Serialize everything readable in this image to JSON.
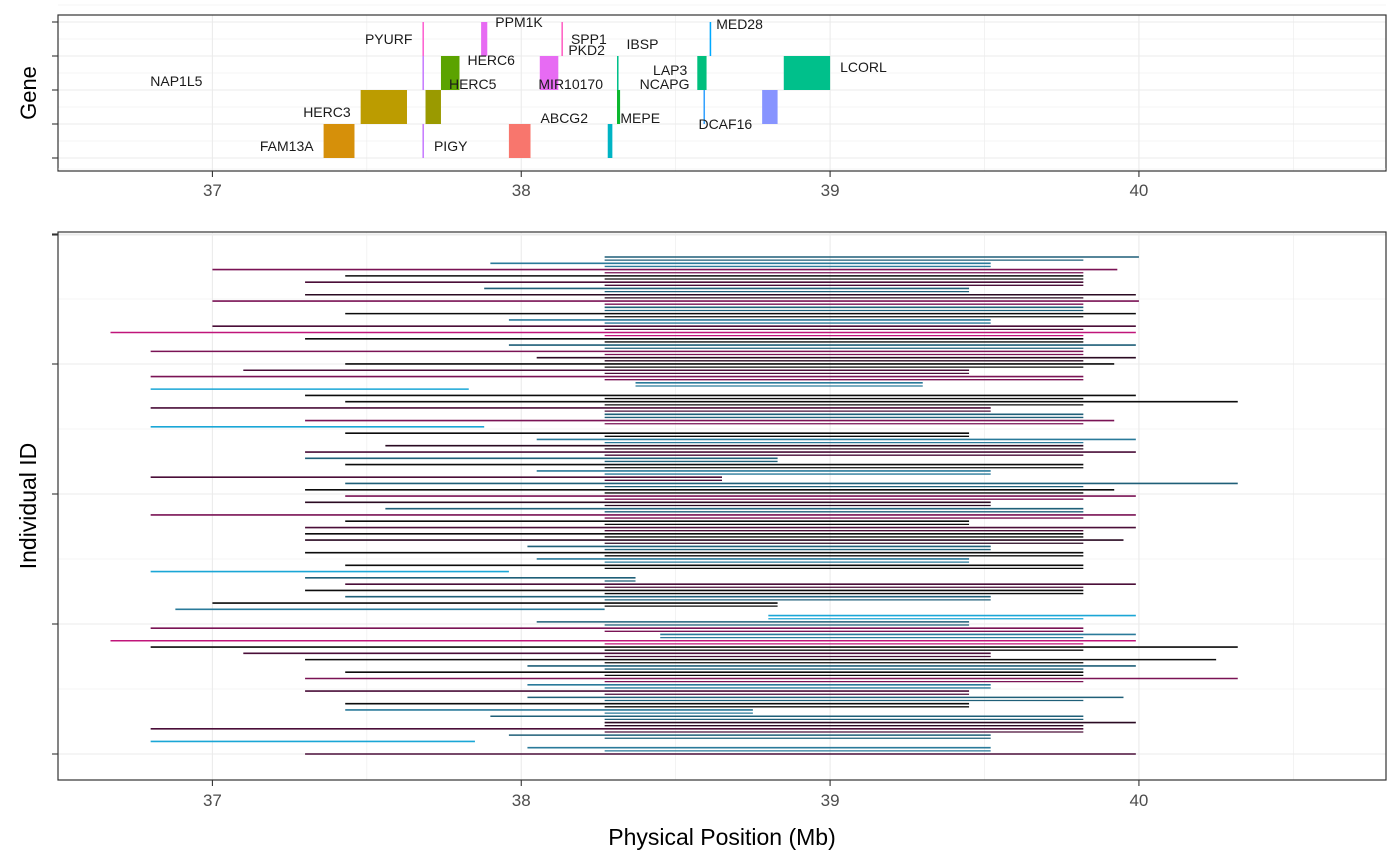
{
  "chart_data": [
    {
      "type": "gene-track",
      "ylabel": "Gene",
      "xlim": [
        36.5,
        40.8
      ],
      "x_ticks": [
        "37",
        "38",
        "39",
        "40"
      ],
      "y_tick_count": 4,
      "grid": true,
      "genes": [
        {
          "name": "FAM13A",
          "start": 37.36,
          "end": 37.46,
          "row": 0,
          "color": "#d6900a"
        },
        {
          "name": "PIGY",
          "start": 37.68,
          "end": 37.685,
          "row": 0,
          "color": "#c77cff"
        },
        {
          "name": "ABCG2",
          "start": 37.96,
          "end": 38.03,
          "row": 0,
          "color": "#f8766d"
        },
        {
          "name": "MEPE",
          "start": 38.28,
          "end": 38.295,
          "row": 0,
          "color": "#00b4c4"
        },
        {
          "name": "DCAF16",
          "start": 38.78,
          "end": 38.83,
          "row": 1,
          "color": "#8794ff"
        },
        {
          "name": "HERC3",
          "start": 37.48,
          "end": 37.63,
          "row": 1,
          "color": "#bc9c00"
        },
        {
          "name": "HERC5",
          "start": 37.69,
          "end": 37.74,
          "row": 1,
          "color": "#9a9a00"
        },
        {
          "name": "MIR10170",
          "start": 38.31,
          "end": 38.32,
          "row": 1,
          "color": "#0cb72e"
        },
        {
          "name": "NCAPG",
          "start": 38.59,
          "end": 38.595,
          "row": 1,
          "color": "#35a2ff"
        },
        {
          "name": "NAP1L5",
          "start": 37.68,
          "end": 37.685,
          "row": 2,
          "color": "#c77cff"
        },
        {
          "name": "HERC6",
          "start": 37.74,
          "end": 37.8,
          "row": 2,
          "color": "#5ba300"
        },
        {
          "name": "PKD2",
          "start": 38.06,
          "end": 38.12,
          "row": 2,
          "color": "#e76bf3"
        },
        {
          "name": "IBSP",
          "start": 38.31,
          "end": 38.315,
          "row": 2,
          "color": "#00c08b"
        },
        {
          "name": "LAP3",
          "start": 38.57,
          "end": 38.6,
          "row": 2,
          "color": "#00bf7d"
        },
        {
          "name": "LCORL",
          "start": 38.85,
          "end": 39.0,
          "row": 2,
          "color": "#00c08b"
        },
        {
          "name": "PYURF",
          "start": 37.68,
          "end": 37.685,
          "row": 3,
          "color": "#fd61d1"
        },
        {
          "name": "PPM1K",
          "start": 37.87,
          "end": 37.89,
          "row": 3,
          "color": "#e76bf3"
        },
        {
          "name": "SPP1",
          "start": 38.13,
          "end": 38.135,
          "row": 3,
          "color": "#ff61c3"
        },
        {
          "name": "MED28",
          "start": 38.61,
          "end": 38.615,
          "row": 3,
          "color": "#00a9ff"
        }
      ]
    },
    {
      "type": "interval",
      "xlabel": "Physical Position (Mb)",
      "ylabel": "Individual ID",
      "xlim": [
        36.5,
        40.8
      ],
      "x_ticks": [
        "37",
        "38",
        "39",
        "40"
      ],
      "y_tick_count": 5,
      "grid": true,
      "intervals": [
        {
          "start": 38.27,
          "end": 40.0,
          "color": "#1f5f78"
        },
        {
          "start": 37.9,
          "end": 39.52,
          "color": "#2a7a9a"
        },
        {
          "start": 37.0,
          "end": 39.93,
          "color": "#7a1355"
        },
        {
          "start": 37.43,
          "end": 39.82,
          "color": "#0c0c0c"
        },
        {
          "start": 37.3,
          "end": 39.82,
          "color": "#4a0e38"
        },
        {
          "start": 37.88,
          "end": 39.45,
          "color": "#1f5f78"
        },
        {
          "start": 37.3,
          "end": 39.99,
          "color": "#2a0a22"
        },
        {
          "start": 37.0,
          "end": 40.0,
          "color": "#7a1355"
        },
        {
          "start": 38.27,
          "end": 39.82,
          "color": "#1f5f78"
        },
        {
          "start": 37.43,
          "end": 39.99,
          "color": "#0c0c0c"
        },
        {
          "start": 37.96,
          "end": 39.52,
          "color": "#2a7a9a"
        },
        {
          "start": 37.0,
          "end": 39.99,
          "color": "#4a0e38"
        },
        {
          "start": 36.67,
          "end": 39.99,
          "color": "#c0157a"
        },
        {
          "start": 37.3,
          "end": 39.82,
          "color": "#0c0c0c"
        },
        {
          "start": 37.96,
          "end": 39.99,
          "color": "#1f5f78"
        },
        {
          "start": 36.8,
          "end": 39.82,
          "color": "#7a1355"
        },
        {
          "start": 38.05,
          "end": 39.99,
          "color": "#2a0a22"
        },
        {
          "start": 37.43,
          "end": 39.92,
          "color": "#0c0c0c"
        },
        {
          "start": 37.1,
          "end": 39.45,
          "color": "#4a0e38"
        },
        {
          "start": 36.8,
          "end": 39.82,
          "color": "#7a1355"
        },
        {
          "start": 38.37,
          "end": 39.3,
          "color": "#2a7a9a"
        },
        {
          "start": 36.8,
          "end": 37.83,
          "color": "#1aa6d6"
        },
        {
          "start": 37.3,
          "end": 39.99,
          "color": "#0c0c0c"
        },
        {
          "start": 37.43,
          "end": 40.32,
          "color": "#0c0c0c"
        },
        {
          "start": 36.8,
          "end": 39.52,
          "color": "#4a0e38"
        },
        {
          "start": 38.27,
          "end": 39.82,
          "color": "#1f5f78"
        },
        {
          "start": 37.3,
          "end": 39.92,
          "color": "#7a1355"
        },
        {
          "start": 36.8,
          "end": 37.88,
          "color": "#1aa6d6"
        },
        {
          "start": 37.43,
          "end": 39.45,
          "color": "#0c0c0c"
        },
        {
          "start": 38.05,
          "end": 39.99,
          "color": "#2a7a9a"
        },
        {
          "start": 37.56,
          "end": 39.82,
          "color": "#2a0a22"
        },
        {
          "start": 37.3,
          "end": 39.99,
          "color": "#4a0e38"
        },
        {
          "start": 37.3,
          "end": 38.83,
          "color": "#1f5f78"
        },
        {
          "start": 37.43,
          "end": 39.82,
          "color": "#0c0c0c"
        },
        {
          "start": 38.05,
          "end": 39.52,
          "color": "#2a7a9a"
        },
        {
          "start": 36.8,
          "end": 38.65,
          "color": "#4a0e38"
        },
        {
          "start": 37.43,
          "end": 40.32,
          "color": "#1f5f78"
        },
        {
          "start": 37.3,
          "end": 39.92,
          "color": "#0c0c0c"
        },
        {
          "start": 37.43,
          "end": 39.99,
          "color": "#7a1355"
        },
        {
          "start": 37.3,
          "end": 39.52,
          "color": "#2a0a22"
        },
        {
          "start": 37.56,
          "end": 39.82,
          "color": "#1f5f78"
        },
        {
          "start": 36.8,
          "end": 39.99,
          "color": "#7a1355"
        },
        {
          "start": 37.43,
          "end": 39.45,
          "color": "#0c0c0c"
        },
        {
          "start": 37.3,
          "end": 39.99,
          "color": "#4a0e38"
        },
        {
          "start": 37.3,
          "end": 39.82,
          "color": "#0c0c0c"
        },
        {
          "start": 37.3,
          "end": 39.95,
          "color": "#2a0a22"
        },
        {
          "start": 38.02,
          "end": 39.52,
          "color": "#1f5f78"
        },
        {
          "start": 37.3,
          "end": 39.82,
          "color": "#0c0c0c"
        },
        {
          "start": 38.05,
          "end": 39.45,
          "color": "#2a7a9a"
        },
        {
          "start": 37.43,
          "end": 39.82,
          "color": "#0c0c0c"
        },
        {
          "start": 36.8,
          "end": 37.96,
          "color": "#1aa6d6"
        },
        {
          "start": 37.3,
          "end": 38.37,
          "color": "#1f5f78"
        },
        {
          "start": 37.43,
          "end": 39.99,
          "color": "#4a0e38"
        },
        {
          "start": 37.3,
          "end": 39.82,
          "color": "#0c0c0c"
        },
        {
          "start": 37.43,
          "end": 39.52,
          "color": "#1f5f78"
        },
        {
          "start": 37.0,
          "end": 38.83,
          "color": "#0c0c0c"
        },
        {
          "start": 36.88,
          "end": 38.27,
          "color": "#2a7a9a"
        },
        {
          "start": 38.8,
          "end": 39.99,
          "color": "#1aa6d6"
        },
        {
          "start": 38.05,
          "end": 39.45,
          "color": "#1f5f78"
        },
        {
          "start": 36.8,
          "end": 39.82,
          "color": "#7a1355"
        },
        {
          "start": 38.45,
          "end": 39.99,
          "color": "#2a7a9a"
        },
        {
          "start": 36.67,
          "end": 39.99,
          "color": "#c0157a"
        },
        {
          "start": 36.8,
          "end": 40.32,
          "color": "#0c0c0c"
        },
        {
          "start": 37.1,
          "end": 39.52,
          "color": "#4a0e38"
        },
        {
          "start": 37.3,
          "end": 40.25,
          "color": "#0c0c0c"
        },
        {
          "start": 38.02,
          "end": 39.99,
          "color": "#1f5f78"
        },
        {
          "start": 37.43,
          "end": 39.82,
          "color": "#0c0c0c"
        },
        {
          "start": 37.3,
          "end": 40.32,
          "color": "#7a1355"
        },
        {
          "start": 38.02,
          "end": 39.52,
          "color": "#2a7a9a"
        },
        {
          "start": 37.3,
          "end": 39.45,
          "color": "#4a0e38"
        },
        {
          "start": 38.02,
          "end": 39.95,
          "color": "#1f5f78"
        },
        {
          "start": 37.43,
          "end": 39.45,
          "color": "#0c0c0c"
        },
        {
          "start": 37.43,
          "end": 38.75,
          "color": "#2a7a9a"
        },
        {
          "start": 37.9,
          "end": 39.82,
          "color": "#1f5f78"
        },
        {
          "start": 38.27,
          "end": 39.99,
          "color": "#2a0a22"
        },
        {
          "start": 36.8,
          "end": 39.82,
          "color": "#4a0e38"
        },
        {
          "start": 37.96,
          "end": 39.52,
          "color": "#1f5f78"
        },
        {
          "start": 36.8,
          "end": 37.85,
          "color": "#1aa6d6"
        },
        {
          "start": 38.02,
          "end": 39.52,
          "color": "#2a7a9a"
        },
        {
          "start": 37.3,
          "end": 39.99,
          "color": "#4a0e38"
        }
      ]
    }
  ]
}
